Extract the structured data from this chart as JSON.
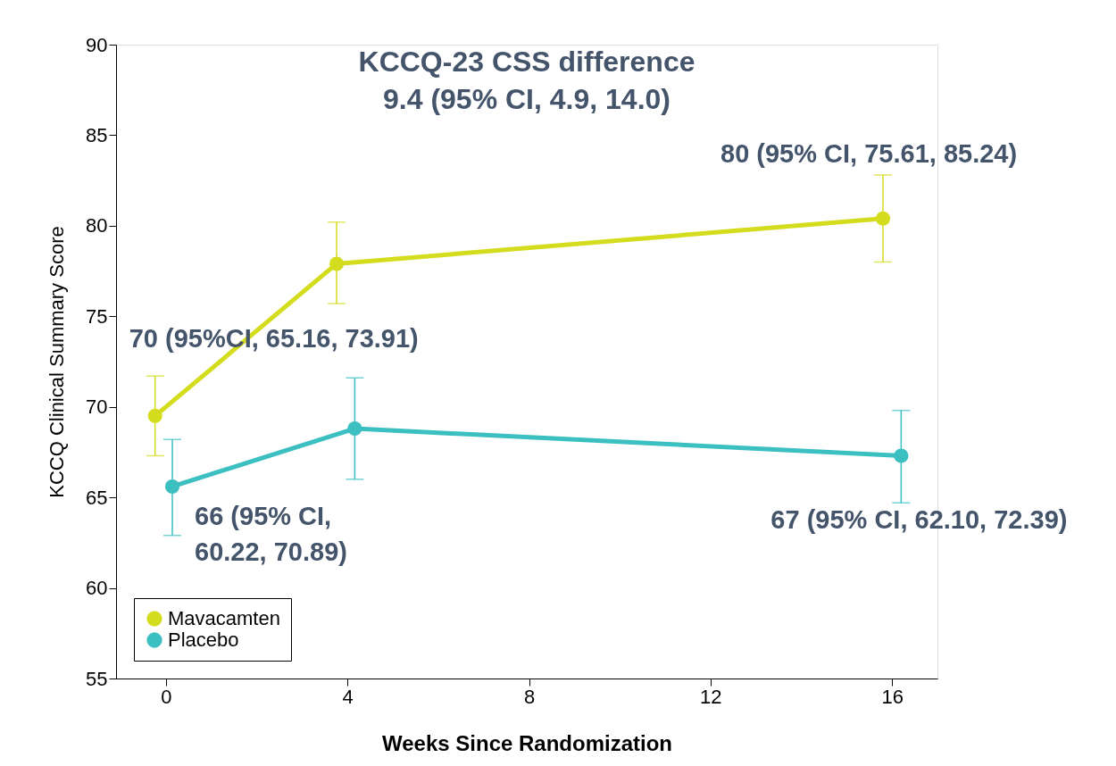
{
  "chart_data": {
    "type": "line",
    "title": "KCCQ-23 CSS difference",
    "subtitle": "9.4 (95% CI, 4.9, 14.0)",
    "xlabel": "Weeks Since Randomization",
    "ylabel": "KCCQ Clinical Summary Score",
    "xlim": [
      -1.1,
      17
    ],
    "xticks": [
      0,
      4,
      8,
      12,
      16
    ],
    "ylim": [
      55,
      90
    ],
    "yticks": [
      55,
      60,
      65,
      70,
      75,
      80,
      85,
      90
    ],
    "grid": false,
    "legend": "bottom left",
    "marker": "circle",
    "line_style": "solid",
    "series": [
      {
        "name": "Mavacamten",
        "color": "#d4dc1e",
        "x": [
          -0.24,
          3.76,
          15.8
        ],
        "values": [
          69.5,
          77.9,
          80.4
        ],
        "errors": [
          [
            67.3,
            71.7
          ],
          [
            75.7,
            80.2
          ],
          [
            78.0,
            82.8
          ]
        ]
      },
      {
        "name": "Placebo",
        "color": "#3bbfc1",
        "x": [
          0.14,
          4.16,
          16.2
        ],
        "values": [
          65.6,
          68.8,
          67.3
        ],
        "errors": [
          [
            62.9,
            68.2
          ],
          [
            66.0,
            71.6
          ],
          [
            64.7,
            69.8
          ]
        ]
      }
    ],
    "annotations": [
      "70 (95%CI, 65.16, 73.91)",
      "80 (95% CI, 75.61, 85.24)",
      "66 (95% CI,\n60.22, 70.89)",
      "67 (95% CI, 62.10, 72.39)"
    ]
  }
}
